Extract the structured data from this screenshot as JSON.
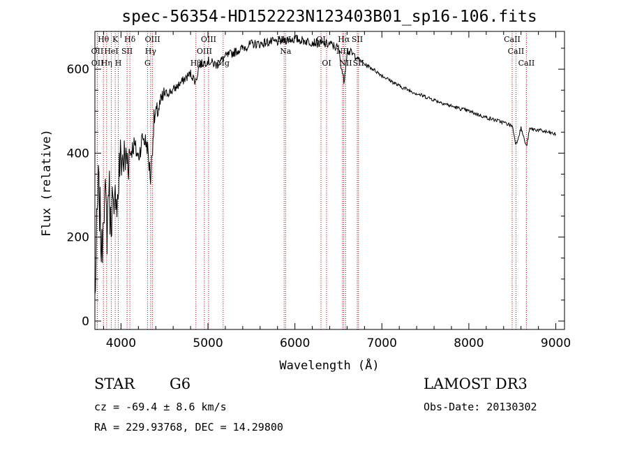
{
  "chart_data": {
    "type": "line",
    "title": "spec-56354-HD152223N123403B01_sp16-106.fits",
    "xlabel": "Wavelength (Å)",
    "ylabel": "Flux (relative)",
    "xlim": [
      3700,
      9100
    ],
    "ylim": [
      -20,
      690
    ],
    "x_ticks": [
      4000,
      5000,
      6000,
      7000,
      8000,
      9000
    ],
    "x_tick_labels": [
      "4000",
      "5000",
      "6000",
      "7000",
      "8000",
      "9000"
    ],
    "y_ticks": [
      0,
      200,
      400,
      600
    ],
    "y_tick_labels": [
      "0",
      "200",
      "400",
      "600"
    ],
    "series": [
      {
        "name": "flux",
        "x": [
          3700,
          3720,
          3740,
          3760,
          3780,
          3800,
          3820,
          3840,
          3860,
          3880,
          3900,
          3920,
          3940,
          3960,
          3980,
          4000,
          4050,
          4100,
          4150,
          4200,
          4250,
          4300,
          4340,
          4380,
          4420,
          4500,
          4600,
          4700,
          4800,
          4860,
          4900,
          5000,
          5100,
          5200,
          5300,
          5400,
          5500,
          5600,
          5700,
          5800,
          5900,
          6000,
          6100,
          6200,
          6300,
          6400,
          6500,
          6563,
          6600,
          6700,
          6800,
          6900,
          7000,
          7200,
          7400,
          7600,
          7800,
          8000,
          8200,
          8400,
          8500,
          8542,
          8600,
          8662,
          8700,
          8800,
          8900,
          9000
        ],
        "y": [
          50,
          200,
          320,
          250,
          150,
          300,
          280,
          220,
          340,
          230,
          290,
          210,
          330,
          280,
          360,
          390,
          380,
          400,
          420,
          390,
          440,
          420,
          340,
          480,
          500,
          540,
          550,
          570,
          590,
          570,
          610,
          620,
          610,
          630,
          640,
          650,
          660,
          660,
          665,
          665,
          670,
          672,
          668,
          665,
          660,
          660,
          650,
          570,
          645,
          630,
          612,
          600,
          585,
          560,
          542,
          527,
          512,
          500,
          485,
          473,
          465,
          420,
          460,
          415,
          458,
          455,
          450,
          445
        ]
      }
    ],
    "spectral_lines": [
      {
        "label": "Hθ",
        "wavelength": 3798,
        "row": 1
      },
      {
        "label": "K",
        "wavelength": 3934,
        "row": 1
      },
      {
        "label": "Hδ",
        "wavelength": 4102,
        "row": 1
      },
      {
        "label": "OII",
        "wavelength": 3727,
        "row": 2
      },
      {
        "label": "HeI",
        "wavelength": 3889,
        "row": 2
      },
      {
        "label": "SII",
        "wavelength": 4070,
        "row": 2
      },
      {
        "label": "OII",
        "wavelength": 3729,
        "row": 3
      },
      {
        "label": "Hη",
        "wavelength": 3835,
        "row": 3
      },
      {
        "label": "H",
        "wavelength": 3969,
        "row": 3
      },
      {
        "label": "OIII",
        "wavelength": 4363,
        "row": 1
      },
      {
        "label": "Hγ",
        "wavelength": 4341,
        "row": 2
      },
      {
        "label": "G",
        "wavelength": 4305,
        "row": 3
      },
      {
        "label": "OIII",
        "wavelength": 5007,
        "row": 1
      },
      {
        "label": "OIII",
        "wavelength": 4959,
        "row": 2
      },
      {
        "label": "Hβ",
        "wavelength": 4861,
        "row": 3
      },
      {
        "label": "Mg",
        "wavelength": 5175,
        "row": 3
      },
      {
        "label": "HeI",
        "wavelength": 5876,
        "row": 1
      },
      {
        "label": "Na",
        "wavelength": 5893,
        "row": 2
      },
      {
        "label": "OI",
        "wavelength": 6300,
        "row": 1
      },
      {
        "label": "OI",
        "wavelength": 6364,
        "row": 3
      },
      {
        "label": "Hα",
        "wavelength": 6563,
        "row": 1
      },
      {
        "label": "SII",
        "wavelength": 6717,
        "row": 1
      },
      {
        "label": "NII",
        "wavelength": 6548,
        "row": 2
      },
      {
        "label": "NII",
        "wavelength": 6584,
        "row": 3
      },
      {
        "label": "SII",
        "wavelength": 6731,
        "row": 3
      },
      {
        "label": "CaII",
        "wavelength": 8498,
        "row": 1
      },
      {
        "label": "CaII",
        "wavelength": 8542,
        "row": 2
      },
      {
        "label": "CaII",
        "wavelength": 8662,
        "row": 3
      }
    ]
  },
  "info": {
    "object_class": "STAR",
    "subclass": "G6",
    "survey": "LAMOST DR3",
    "redshift": "cz = -69.4 ± 8.6 km/s",
    "obs_date": "Obs-Date: 20130302",
    "coordinates": "RA = 229.93768, DEC =  14.29800"
  },
  "colors": {
    "spectrum": "#000000",
    "line_markers": "#c00000",
    "axes": "#000000"
  }
}
